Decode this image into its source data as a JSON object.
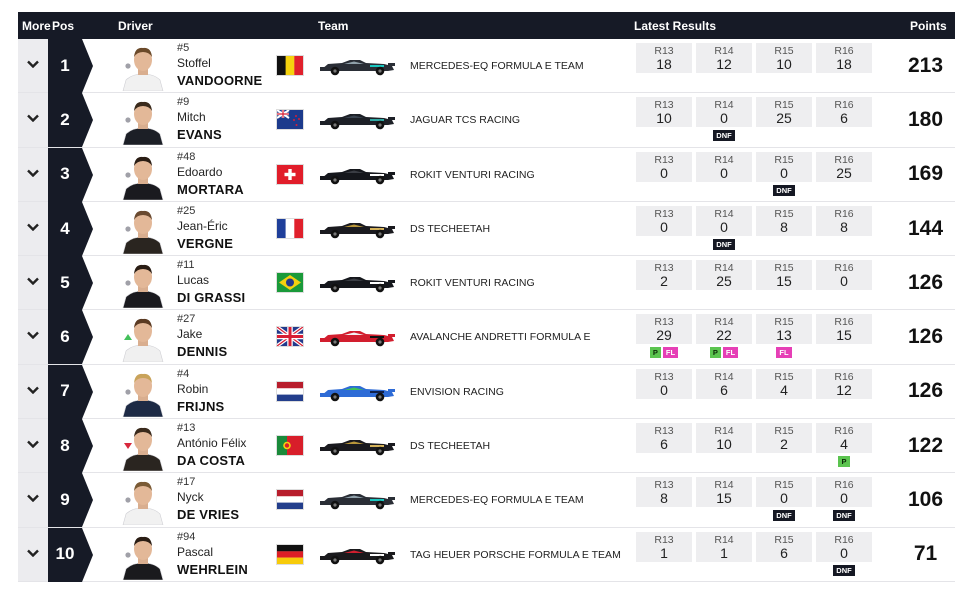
{
  "header": {
    "more": "More",
    "pos": "Pos",
    "driver": "Driver",
    "team": "Team",
    "latest_results": "Latest Results",
    "points": "Points"
  },
  "colors": {
    "header_bg": "#161a26",
    "pos_bg": "#161a26",
    "dnf": "#151823",
    "pole": "#5bc44f",
    "fastest_lap": "#e63fb6",
    "trend_up": "#43c05a",
    "trend_down": "#d8283c",
    "trend_same": "#a0a0a8"
  },
  "rows": [
    {
      "pos": "1",
      "trend": "same",
      "number": "#5",
      "first": "Stoffel",
      "last": "VANDOORNE",
      "flag": "belgium",
      "car": "mercedes",
      "team": "MERCEDES-EQ FORMULA E TEAM",
      "points": "213",
      "results": [
        {
          "label": "R13",
          "value": "18",
          "badges": []
        },
        {
          "label": "R14",
          "value": "12",
          "badges": []
        },
        {
          "label": "R15",
          "value": "10",
          "badges": []
        },
        {
          "label": "R16",
          "value": "18",
          "badges": []
        }
      ]
    },
    {
      "pos": "2",
      "trend": "same",
      "number": "#9",
      "first": "Mitch",
      "last": "EVANS",
      "flag": "new-zealand",
      "car": "jaguar",
      "team": "JAGUAR TCS RACING",
      "points": "180",
      "results": [
        {
          "label": "R13",
          "value": "10",
          "badges": []
        },
        {
          "label": "R14",
          "value": "0",
          "badges": [
            "DNF"
          ]
        },
        {
          "label": "R15",
          "value": "25",
          "badges": []
        },
        {
          "label": "R16",
          "value": "6",
          "badges": []
        }
      ]
    },
    {
      "pos": "3",
      "trend": "same",
      "number": "#48",
      "first": "Edoardo",
      "last": "MORTARA",
      "flag": "switzerland",
      "car": "venturi",
      "team": "ROKIT VENTURI RACING",
      "points": "169",
      "results": [
        {
          "label": "R13",
          "value": "0",
          "badges": []
        },
        {
          "label": "R14",
          "value": "0",
          "badges": []
        },
        {
          "label": "R15",
          "value": "0",
          "badges": [
            "DNF"
          ]
        },
        {
          "label": "R16",
          "value": "25",
          "badges": []
        }
      ]
    },
    {
      "pos": "4",
      "trend": "same",
      "number": "#25",
      "first": "Jean-Éric",
      "last": "VERGNE",
      "flag": "france",
      "car": "ds",
      "team": "DS TECHEETAH",
      "points": "144",
      "results": [
        {
          "label": "R13",
          "value": "0",
          "badges": []
        },
        {
          "label": "R14",
          "value": "0",
          "badges": [
            "DNF"
          ]
        },
        {
          "label": "R15",
          "value": "8",
          "badges": []
        },
        {
          "label": "R16",
          "value": "8",
          "badges": []
        }
      ]
    },
    {
      "pos": "5",
      "trend": "same",
      "number": "#11",
      "first": "Lucas",
      "last": "DI GRASSI",
      "flag": "brazil",
      "car": "venturi",
      "team": "ROKIT VENTURI RACING",
      "points": "126",
      "results": [
        {
          "label": "R13",
          "value": "2",
          "badges": []
        },
        {
          "label": "R14",
          "value": "25",
          "badges": []
        },
        {
          "label": "R15",
          "value": "15",
          "badges": []
        },
        {
          "label": "R16",
          "value": "0",
          "badges": []
        }
      ]
    },
    {
      "pos": "6",
      "trend": "up",
      "number": "#27",
      "first": "Jake",
      "last": "DENNIS",
      "flag": "uk",
      "car": "andretti",
      "team": "AVALANCHE ANDRETTI FORMULA E",
      "points": "126",
      "results": [
        {
          "label": "R13",
          "value": "29",
          "badges": [
            "P",
            "FL"
          ]
        },
        {
          "label": "R14",
          "value": "22",
          "badges": [
            "P",
            "FL"
          ]
        },
        {
          "label": "R15",
          "value": "13",
          "badges": [
            "FL"
          ]
        },
        {
          "label": "R16",
          "value": "15",
          "badges": []
        }
      ]
    },
    {
      "pos": "7",
      "trend": "same",
      "number": "#4",
      "first": "Robin",
      "last": "FRIJNS",
      "flag": "netherlands",
      "car": "envision",
      "team": "ENVISION RACING",
      "points": "126",
      "results": [
        {
          "label": "R13",
          "value": "0",
          "badges": []
        },
        {
          "label": "R14",
          "value": "6",
          "badges": []
        },
        {
          "label": "R15",
          "value": "4",
          "badges": []
        },
        {
          "label": "R16",
          "value": "12",
          "badges": []
        }
      ]
    },
    {
      "pos": "8",
      "trend": "down",
      "number": "#13",
      "first": "António Félix",
      "last": "DA COSTA",
      "flag": "portugal",
      "car": "ds",
      "team": "DS TECHEETAH",
      "points": "122",
      "results": [
        {
          "label": "R13",
          "value": "6",
          "badges": []
        },
        {
          "label": "R14",
          "value": "10",
          "badges": []
        },
        {
          "label": "R15",
          "value": "2",
          "badges": []
        },
        {
          "label": "R16",
          "value": "4",
          "badges": [
            "P"
          ]
        }
      ]
    },
    {
      "pos": "9",
      "trend": "same",
      "number": "#17",
      "first": "Nyck",
      "last": "DE VRIES",
      "flag": "netherlands",
      "car": "mercedes",
      "team": "MERCEDES-EQ FORMULA E TEAM",
      "points": "106",
      "results": [
        {
          "label": "R13",
          "value": "8",
          "badges": []
        },
        {
          "label": "R14",
          "value": "15",
          "badges": []
        },
        {
          "label": "R15",
          "value": "0",
          "badges": [
            "DNF"
          ]
        },
        {
          "label": "R16",
          "value": "0",
          "badges": [
            "DNF"
          ]
        }
      ]
    },
    {
      "pos": "10",
      "trend": "same",
      "number": "#94",
      "first": "Pascal",
      "last": "WEHRLEIN",
      "flag": "germany",
      "car": "porsche",
      "team": "TAG HEUER PORSCHE FORMULA E TEAM",
      "points": "71",
      "results": [
        {
          "label": "R13",
          "value": "1",
          "badges": []
        },
        {
          "label": "R14",
          "value": "1",
          "badges": []
        },
        {
          "label": "R15",
          "value": "6",
          "badges": []
        },
        {
          "label": "R16",
          "value": "0",
          "badges": [
            "DNF"
          ]
        }
      ]
    }
  ]
}
